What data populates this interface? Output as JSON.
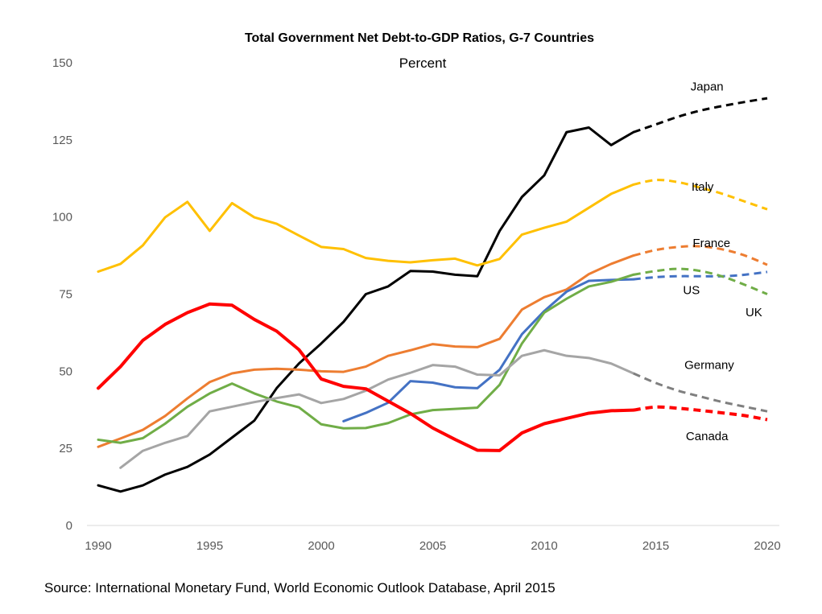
{
  "chart_data": {
    "type": "line",
    "title": "Total Government Net Debt-to-GDP Ratios, G-7 Countries",
    "subtitle": "Percent",
    "xlabel": "",
    "ylabel": "Percent",
    "xlim": [
      1990,
      2020
    ],
    "ylim": [
      0,
      150
    ],
    "x_ticks": [
      "1990",
      "1995",
      "2000",
      "2005",
      "2010",
      "2015",
      "2020"
    ],
    "y_ticks": [
      "0",
      "25",
      "50",
      "75",
      "100",
      "125",
      "150"
    ],
    "grid": false,
    "legend": "inline labels at right",
    "projection_start_year": 2014,
    "projection_style": "dashed",
    "source": "Source: International Monetary Fund, World Economic Outlook Database, April 2015",
    "series": [
      {
        "name": "Japan",
        "color": "#000000",
        "width": 3,
        "start_year": 1990,
        "values": [
          13,
          11,
          13,
          16.5,
          19,
          23,
          28.5,
          34,
          44.5,
          52.5,
          59,
          66,
          75,
          77.5,
          82.5,
          82.3,
          81.3,
          80.8,
          95.5,
          106.5,
          113.5,
          127.5,
          129,
          123.3,
          127.5,
          130,
          132.5,
          134.5,
          136,
          137.3,
          138.5
        ]
      },
      {
        "name": "Italy",
        "color": "#FFC000",
        "width": 3,
        "start_year": 1990,
        "values": [
          82.3,
          84.8,
          90.8,
          99.9,
          104.9,
          95.5,
          104.5,
          99.9,
          97.8,
          94,
          90.3,
          89.6,
          86.7,
          85.8,
          85.3,
          86,
          86.5,
          84.3,
          86.4,
          94.3,
          96.5,
          98.5,
          103,
          107.5,
          110.5,
          112,
          111.3,
          109.5,
          107.5,
          105,
          102.5
        ]
      },
      {
        "name": "France",
        "color": "#ED7D31",
        "width": 3,
        "start_year": 1990,
        "values": [
          25.5,
          28.2,
          31,
          35.5,
          41.2,
          46.5,
          49.3,
          50.5,
          50.8,
          50.5,
          50,
          49.8,
          51.5,
          55,
          56.8,
          58.8,
          58,
          57.8,
          60.5,
          70,
          74,
          76.5,
          81.5,
          84.8,
          87.5,
          89.3,
          90.3,
          90.5,
          89.5,
          87.5,
          84.5
        ]
      },
      {
        "name": "US",
        "color": "#4472C4",
        "width": 3,
        "start_year": 2001,
        "values": [
          33.8,
          36.5,
          39.8,
          46.8,
          46.3,
          44.8,
          44.5,
          50.5,
          62,
          69.5,
          75.8,
          79.3,
          79.6,
          79.8,
          80.5,
          80.8,
          80.8,
          80.8,
          81.3,
          82.2
        ]
      },
      {
        "name": "UK",
        "color": "#70AD47",
        "width": 3,
        "start_year": 1990,
        "values": [
          27.8,
          26.8,
          28.3,
          33,
          38.5,
          42.8,
          46,
          42.8,
          40.2,
          38.3,
          32.8,
          31.5,
          31.6,
          33.2,
          36,
          37.4,
          37.8,
          38.2,
          45.6,
          59,
          69,
          73.5,
          77.5,
          79,
          81.3,
          82.5,
          83.2,
          82.5,
          80.7,
          78,
          75
        ]
      },
      {
        "name": "Germany",
        "color": "#A5A5A5",
        "dash_color": "#7F7F7F",
        "width": 3,
        "start_year": 1991,
        "values": [
          18.7,
          24.2,
          26.8,
          29,
          37,
          38.5,
          40,
          41.3,
          42.5,
          39.7,
          41,
          43.7,
          47.3,
          49.5,
          52,
          51.5,
          48.9,
          48.7,
          55,
          56.8,
          55,
          54.3,
          52.5,
          49.3,
          46.2,
          43.7,
          41.8,
          40,
          38.5,
          37
        ]
      },
      {
        "name": "Canada",
        "color": "#FF0000",
        "width": 4,
        "start_year": 1990,
        "values": [
          44.5,
          51.5,
          60,
          65.2,
          69,
          71.8,
          71.4,
          66.8,
          63,
          57,
          47.5,
          45.1,
          44.3,
          40.3,
          36.3,
          31.6,
          27.9,
          24.4,
          24.3,
          30,
          33,
          34.7,
          36.4,
          37.2,
          37.4,
          38.4,
          38,
          37.3,
          36.5,
          35.6,
          34.3
        ]
      }
    ],
    "annotations": [
      {
        "text": "Japan",
        "series": "Japan",
        "x": 2017.3,
        "y": 141
      },
      {
        "text": "Italy",
        "series": "Italy",
        "x": 2017.1,
        "y": 108.5
      },
      {
        "text": "France",
        "series": "France",
        "x": 2017.5,
        "y": 90.3
      },
      {
        "text": "US",
        "series": "US",
        "x": 2016.6,
        "y": 75
      },
      {
        "text": "UK",
        "series": "UK",
        "x": 2019.4,
        "y": 67.8
      },
      {
        "text": "Germany",
        "series": "Germany",
        "x": 2017.4,
        "y": 50.8
      },
      {
        "text": "Canada",
        "series": "Canada",
        "x": 2017.3,
        "y": 27.6
      }
    ]
  }
}
